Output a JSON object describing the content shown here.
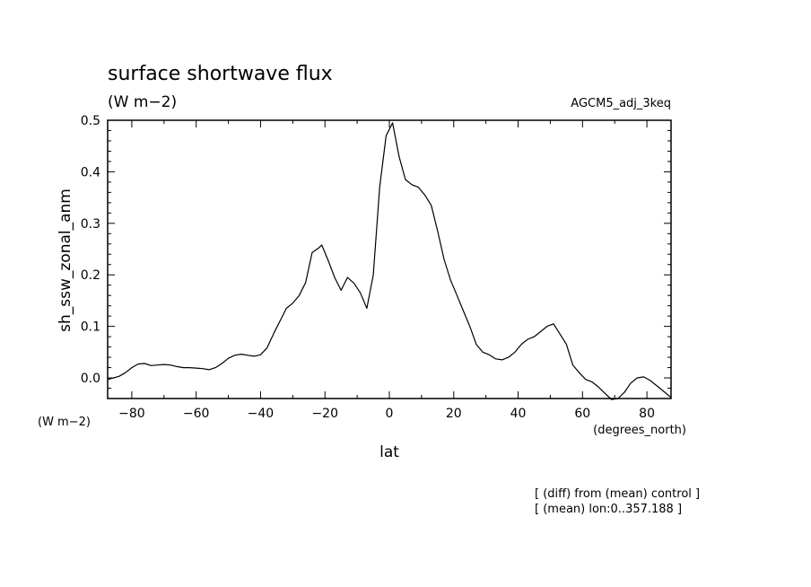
{
  "chart_data": {
    "type": "line",
    "title": "surface shortwave flux",
    "title_units": "(W m−2)",
    "run_label": "AGCM5_adj_3keq",
    "ylabel": "sh_ssw_zonal_anm",
    "y_units": "(W m−2)",
    "xlabel": "lat",
    "x_units": "(degrees_north)",
    "xlim": [
      -87.5,
      87.5
    ],
    "ylim": [
      -0.04,
      0.5
    ],
    "xticks": [
      -80,
      -60,
      -40,
      -20,
      0,
      20,
      40,
      60,
      80
    ],
    "xtick_labels": [
      "−80",
      "−60",
      "−40",
      "−20",
      "0",
      "20",
      "40",
      "60",
      "80"
    ],
    "yticks": [
      0.0,
      0.1,
      0.2,
      0.3,
      0.4,
      0.5
    ],
    "ytick_labels": [
      "0.0",
      "0.1",
      "0.2",
      "0.3",
      "0.4",
      "0.5"
    ],
    "grid": false,
    "series": [
      {
        "x": [
          -87.5,
          -84,
          -82,
          -80,
          -78,
          -76,
          -74,
          -72,
          -70,
          -68,
          -66,
          -64,
          -62,
          -60,
          -58,
          -56,
          -54,
          -52,
          -50,
          -48,
          -46,
          -44,
          -42,
          -40,
          -38,
          -36,
          -34,
          -32,
          -30,
          -28,
          -26,
          -24,
          -22,
          -21,
          -19,
          -17,
          -15,
          -13,
          -11,
          -9,
          -7,
          -5,
          -3,
          -1,
          1,
          3,
          5,
          7,
          9,
          11,
          13,
          15,
          17,
          19,
          21,
          23,
          25,
          27,
          29,
          31,
          33,
          35,
          37,
          39,
          41,
          43,
          45,
          47,
          49,
          51,
          53,
          55,
          57,
          59,
          61,
          63,
          65,
          67,
          69,
          71,
          73,
          75,
          77,
          79,
          81,
          83,
          85,
          87.5
        ],
        "y": [
          -0.003,
          0.003,
          0.01,
          0.02,
          0.027,
          0.028,
          0.024,
          0.025,
          0.026,
          0.025,
          0.022,
          0.02,
          0.02,
          0.019,
          0.018,
          0.016,
          0.02,
          0.028,
          0.038,
          0.044,
          0.046,
          0.044,
          0.042,
          0.045,
          0.058,
          0.085,
          0.11,
          0.135,
          0.145,
          0.16,
          0.185,
          0.243,
          0.252,
          0.258,
          0.228,
          0.195,
          0.17,
          0.195,
          0.184,
          0.165,
          0.135,
          0.2,
          0.37,
          0.47,
          0.495,
          0.43,
          0.385,
          0.375,
          0.37,
          0.355,
          0.335,
          0.285,
          0.23,
          0.19,
          0.16,
          0.13,
          0.1,
          0.065,
          0.05,
          0.045,
          0.037,
          0.035,
          0.04,
          0.05,
          0.065,
          0.075,
          0.08,
          0.09,
          0.1,
          0.105,
          0.085,
          0.065,
          0.025,
          0.01,
          -0.003,
          -0.008,
          -0.018,
          -0.03,
          -0.042,
          -0.04,
          -0.028,
          -0.01,
          0.0,
          0.002,
          -0.005,
          -0.015,
          -0.025,
          -0.038
        ]
      }
    ]
  },
  "annotations": {
    "line1": "[ (diff) from (mean) control ]",
    "line2": "[ (mean) lon:0..357.188 ]"
  }
}
